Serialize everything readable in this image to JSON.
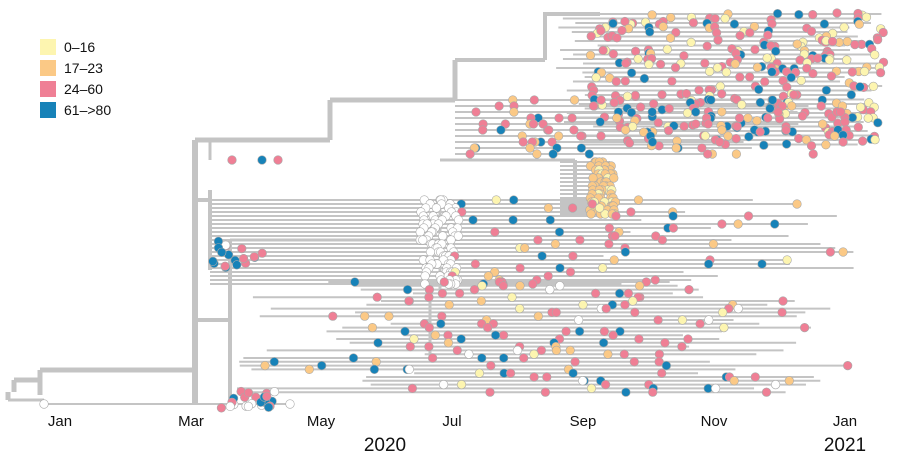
{
  "legend": {
    "title": "",
    "items": [
      {
        "label": "0–16",
        "color": "#fdf5b0"
      },
      {
        "label": "17–23",
        "color": "#fbc986"
      },
      {
        "label": "24–60",
        "color": "#ef7f95"
      },
      {
        "label": "61–>80",
        "color": "#1782b8"
      }
    ]
  },
  "axis": {
    "months": [
      "Jan",
      "Mar",
      "May",
      "Jul",
      "Sep",
      "Nov",
      "Jan"
    ],
    "years": [
      "2020",
      "2021"
    ]
  },
  "colors": {
    "branch": "#c4c4c4",
    "unassigned_node": "#ffffff",
    "node_outline": "#a9a9a9"
  }
}
